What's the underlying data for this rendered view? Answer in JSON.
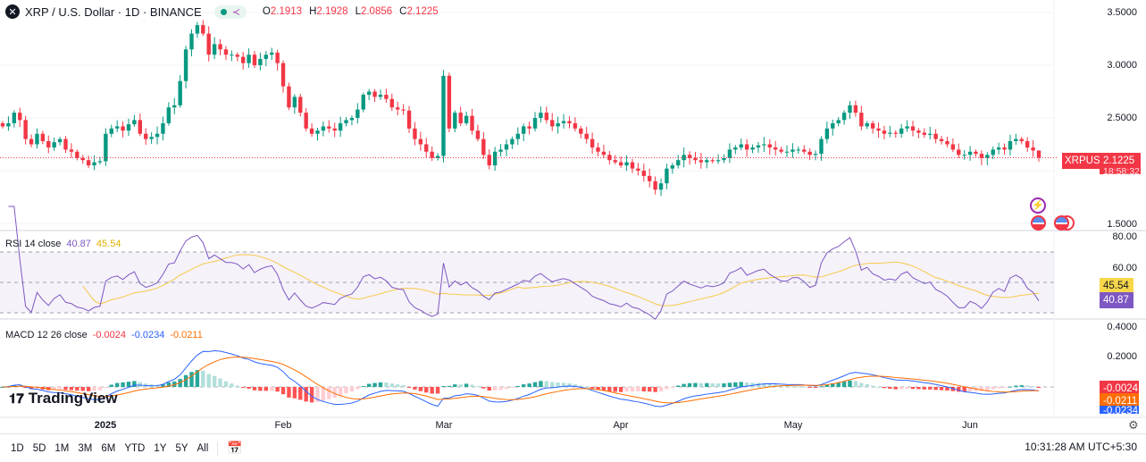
{
  "header": {
    "symbol_icon": "xrp-logo-icon",
    "title": "XRP / U.S. Dollar · 1D · BINANCE",
    "status_icon": "market-open-dot-icon",
    "share_icon": "share-icon",
    "ohlc": {
      "o_label": "O",
      "o": "2.1913",
      "h_label": "H",
      "h": "2.1928",
      "l_label": "L",
      "l": "2.0856",
      "c_label": "C",
      "c": "2.1225"
    }
  },
  "price_axis": {
    "ticks": [
      "3.5000",
      "3.0000",
      "2.5000",
      "1.5000"
    ],
    "last_symbol": "XRPUSD",
    "last_price": "2.1225",
    "countdown": "18:58:32"
  },
  "rsi": {
    "label": "RSI 14 close",
    "value": "40.87",
    "ma_value": "45.54",
    "ticks": [
      "80.00",
      "60.00"
    ],
    "upper_band": 70,
    "lower_band": 30,
    "color": "#7e57c2",
    "ma_color": "#f7c948"
  },
  "macd": {
    "label": "MACD 12 26 close",
    "hist": "-0.0024",
    "macd": "-0.0234",
    "signal": "-0.0211",
    "ticks": [
      "0.4000",
      "0.2000"
    ],
    "macd_color": "#2962ff",
    "signal_color": "#ff6d00"
  },
  "time_axis": {
    "ticks": [
      "2025",
      "Feb",
      "Mar",
      "Apr",
      "May",
      "Jun"
    ]
  },
  "toolbar": {
    "ranges": [
      "1D",
      "5D",
      "1M",
      "3M",
      "6M",
      "YTD",
      "1Y",
      "5Y",
      "All"
    ],
    "calendar_icon": "calendar-range-icon",
    "time": "10:31:28 AM UTC+5:30",
    "settings_icon": "gear-icon"
  },
  "logo": {
    "text": "TradingView"
  },
  "colors": {
    "up": "#089981",
    "down": "#f23645"
  },
  "chart_data": {
    "type": "candlestick",
    "interval": "1D",
    "ylim": [
      1.5,
      3.5
    ],
    "closes": [
      2.42,
      2.45,
      2.55,
      2.48,
      2.3,
      2.25,
      2.35,
      2.28,
      2.22,
      2.27,
      2.3,
      2.2,
      2.18,
      2.12,
      2.1,
      2.05,
      2.08,
      2.09,
      2.35,
      2.4,
      2.42,
      2.38,
      2.44,
      2.48,
      2.35,
      2.3,
      2.32,
      2.35,
      2.45,
      2.6,
      2.62,
      2.85,
      3.15,
      3.3,
      3.38,
      3.3,
      3.1,
      3.2,
      3.15,
      3.1,
      3.1,
      3.08,
      3.02,
      3.1,
      3.0,
      3.06,
      3.1,
      3.12,
      3.02,
      2.8,
      2.6,
      2.7,
      2.55,
      2.4,
      2.35,
      2.38,
      2.42,
      2.4,
      2.38,
      2.45,
      2.48,
      2.5,
      2.58,
      2.72,
      2.75,
      2.7,
      2.72,
      2.68,
      2.6,
      2.58,
      2.57,
      2.4,
      2.3,
      2.25,
      2.18,
      2.12,
      2.14,
      2.9,
      2.4,
      2.55,
      2.45,
      2.52,
      2.38,
      2.3,
      2.15,
      2.05,
      2.18,
      2.2,
      2.25,
      2.3,
      2.35,
      2.42,
      2.4,
      2.5,
      2.55,
      2.48,
      2.42,
      2.45,
      2.47,
      2.45,
      2.4,
      2.35,
      2.3,
      2.22,
      2.18,
      2.15,
      2.1,
      2.08,
      2.05,
      2.08,
      2.02,
      2.0,
      1.95,
      1.9,
      1.82,
      1.88,
      2.02,
      2.05,
      2.1,
      2.15,
      2.12,
      2.1,
      2.08,
      2.1,
      2.09,
      2.1,
      2.12,
      2.2,
      2.22,
      2.25,
      2.2,
      2.22,
      2.24,
      2.25,
      2.22,
      2.2,
      2.18,
      2.18,
      2.2,
      2.2,
      2.18,
      2.15,
      2.16,
      2.3,
      2.4,
      2.45,
      2.48,
      2.55,
      2.62,
      2.55,
      2.42,
      2.45,
      2.4,
      2.38,
      2.35,
      2.36,
      2.35,
      2.4,
      2.42,
      2.38,
      2.36,
      2.34,
      2.35,
      2.3,
      2.28,
      2.25,
      2.2,
      2.15,
      2.15,
      2.18,
      2.16,
      2.12,
      2.15,
      2.2,
      2.22,
      2.2,
      2.28,
      2.3,
      2.28,
      2.22,
      2.1913,
      2.1225
    ]
  }
}
